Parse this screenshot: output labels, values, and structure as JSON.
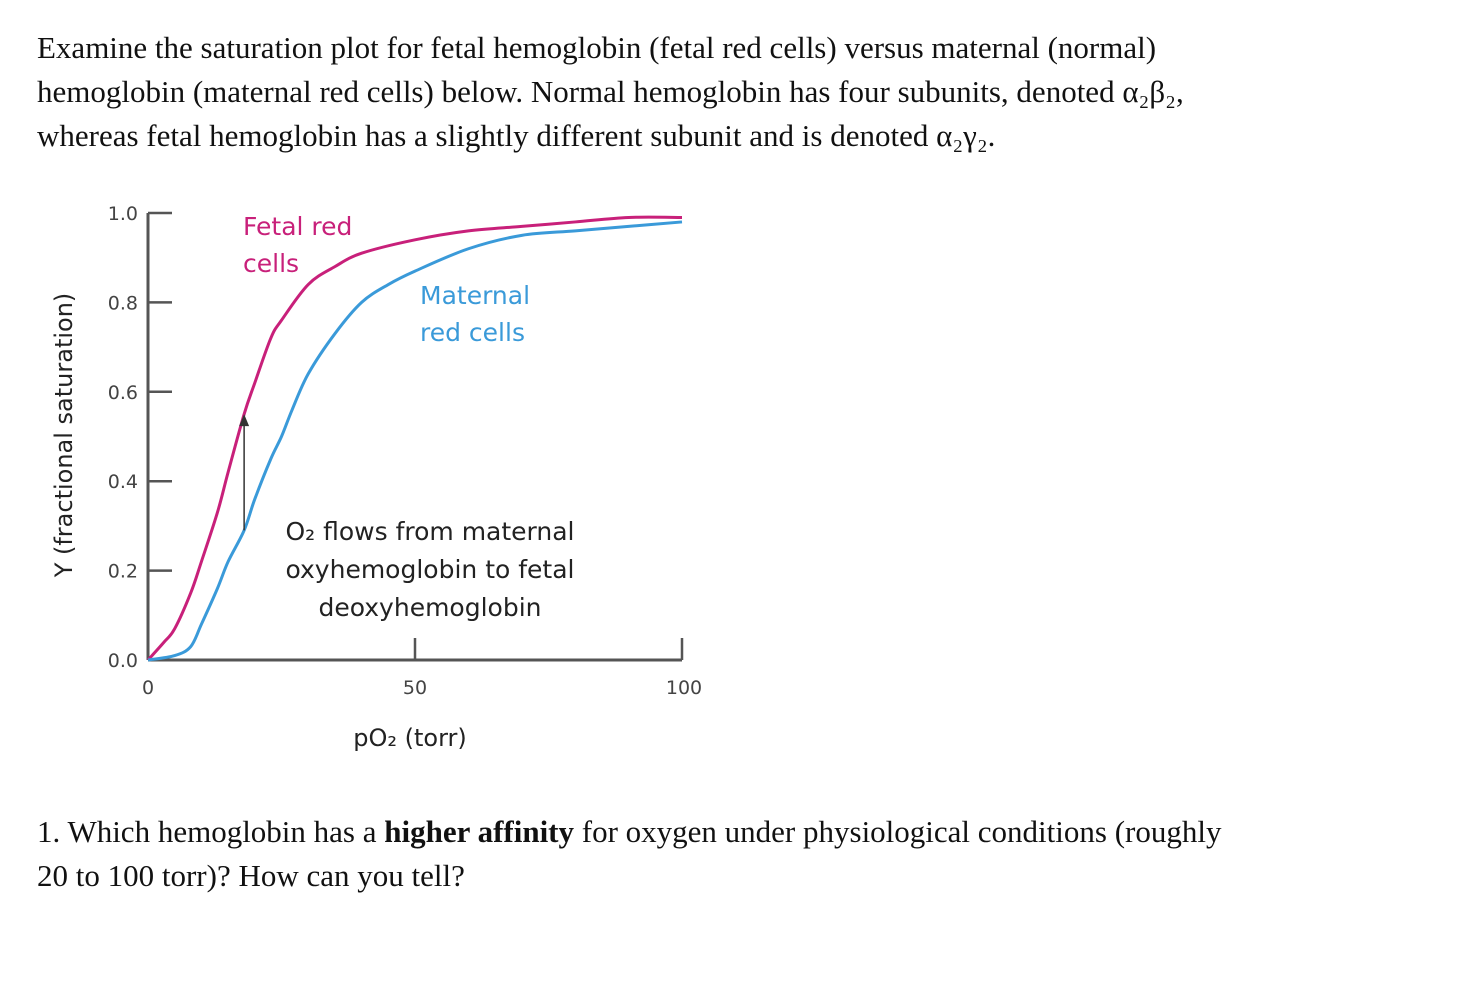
{
  "intro": {
    "line1": "Examine the saturation plot for fetal hemoglobin (fetal red cells) versus maternal (normal)",
    "line2": "hemoglobin (maternal red cells) below. Normal hemoglobin has four subunits, denoted α₂β₂,",
    "line3": "whereas fetal hemoglobin has a slightly different subunit and is denoted α₂γ₂."
  },
  "question": {
    "before_bold": "1. Which hemoglobin has a ",
    "bold": "higher affinity",
    "after_bold": " for oxygen under physiological conditions (roughly",
    "line2": "20 to 100 torr)? How can you tell?"
  },
  "chart_data": {
    "type": "line",
    "xlabel": "pO₂ (torr)",
    "ylabel": "Y (fractional saturation)",
    "xlim": [
      0,
      100
    ],
    "ylim": [
      0,
      1.0
    ],
    "x_ticks": [
      "0",
      "50",
      "100"
    ],
    "y_ticks": [
      "0.0",
      "0.2",
      "0.4",
      "0.6",
      "0.8",
      "1.0"
    ],
    "grid": false,
    "series": [
      {
        "name": "Fetal red cells",
        "color": "#c8207a",
        "x": [
          0,
          3,
          5,
          8,
          10,
          13,
          15,
          18,
          20,
          23,
          25,
          30,
          35,
          40,
          50,
          60,
          70,
          80,
          90,
          100
        ],
        "y": [
          0,
          0.04,
          0.07,
          0.15,
          0.22,
          0.33,
          0.42,
          0.55,
          0.62,
          0.72,
          0.76,
          0.84,
          0.88,
          0.91,
          0.94,
          0.96,
          0.97,
          0.98,
          0.99,
          0.99
        ]
      },
      {
        "name": "Maternal red cells",
        "color": "#3a9ad9",
        "x": [
          0,
          5,
          8,
          10,
          13,
          15,
          18,
          20,
          23,
          25,
          27,
          30,
          35,
          40,
          45,
          50,
          60,
          70,
          80,
          90,
          100
        ],
        "y": [
          0,
          0.01,
          0.03,
          0.08,
          0.16,
          0.22,
          0.29,
          0.36,
          0.45,
          0.5,
          0.56,
          0.64,
          0.73,
          0.8,
          0.84,
          0.87,
          0.92,
          0.95,
          0.96,
          0.97,
          0.98
        ]
      }
    ],
    "annotation": {
      "line1": "O₂ flows from maternal",
      "line2": "oxyhemoglobin to fetal",
      "line3": "deoxyhemoglobin",
      "arrow_x": 18,
      "arrow_from_y": 0.29,
      "arrow_to_y": 0.55
    }
  }
}
